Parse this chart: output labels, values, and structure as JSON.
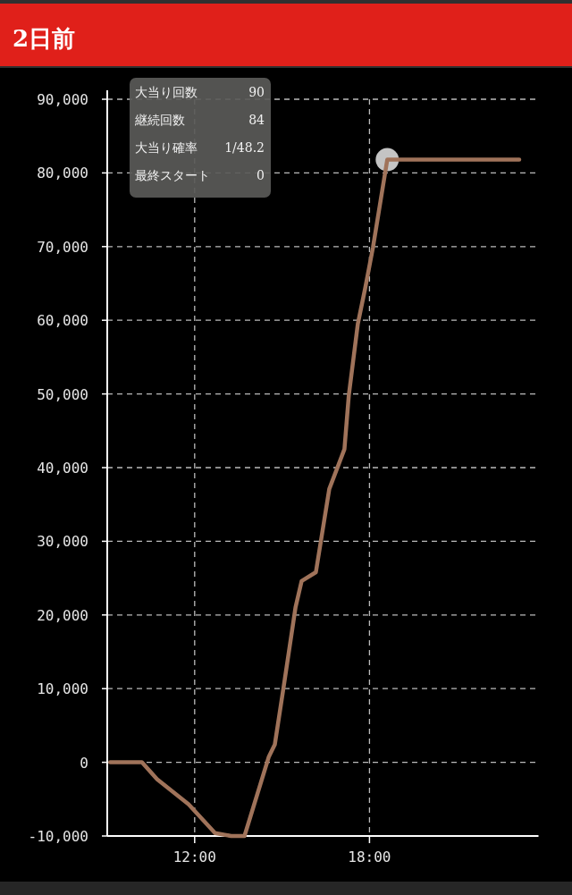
{
  "chart_data": {
    "type": "line",
    "title": "2日前",
    "x": [
      9.1,
      10.19,
      10.71,
      11.79,
      12.7,
      13.25,
      13.71,
      14.54,
      14.75,
      15.06,
      15.46,
      15.67,
      16.16,
      16.62,
      17.14,
      17.29,
      17.6,
      17.85,
      18.12,
      18.61,
      23.14
    ],
    "series": [
      {
        "color": "#a0735a",
        "values": [
          0,
          0,
          -2300,
          -5700,
          -9600,
          -10000,
          -10000,
          700,
          2400,
          10400,
          21000,
          24600,
          25800,
          37100,
          42500,
          49800,
          59500,
          64300,
          69900,
          81800,
          81800
        ]
      },
      {
        "type": "scatter",
        "color": "#d9d9d9",
        "x": [
          18.61
        ],
        "values": [
          81800
        ]
      }
    ],
    "xlim": [
      9,
      23.8
    ],
    "ylim": [
      -10000,
      90000
    ],
    "xticks": [
      {
        "value": 12,
        "label": "12:00"
      },
      {
        "value": 18,
        "label": "18:00"
      }
    ],
    "yticks": [
      {
        "value": -10000,
        "label": "-10,000"
      },
      {
        "value": 0,
        "label": "0"
      },
      {
        "value": 10000,
        "label": "10,000"
      },
      {
        "value": 20000,
        "label": "20,000"
      },
      {
        "value": 30000,
        "label": "30,000"
      },
      {
        "value": 40000,
        "label": "40,000"
      },
      {
        "value": 50000,
        "label": "50,000"
      },
      {
        "value": 60000,
        "label": "60,000"
      },
      {
        "value": 70000,
        "label": "70,000"
      },
      {
        "value": 80000,
        "label": "80,000"
      },
      {
        "value": 90000,
        "label": "90,000"
      }
    ],
    "grid": true,
    "line_style": "solid",
    "annotations": [
      "大当り回数",
      "90",
      "継続回数",
      "84",
      "大当り確率",
      "1/48.2",
      "最終スタート",
      "0"
    ]
  }
}
